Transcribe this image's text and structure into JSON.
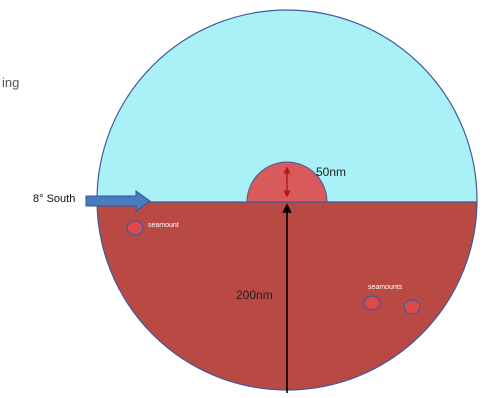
{
  "fragment_text": "ing",
  "labels": {
    "latitude": "8° South",
    "radius_large": "200nm",
    "radius_small": "50nm",
    "seamount_single": "seamount",
    "seamount_group": "seamounts"
  },
  "colors": {
    "sky": "#aaf0f7",
    "sea": "#b84a43",
    "semicircle": "#d85a5a",
    "arrow_fill": "#4a7bc0",
    "seamount_fill": "#e04848",
    "seamount_stroke": "#3e5aa0",
    "outline": "#3e5aa0",
    "red_arrow": "#b01818"
  }
}
